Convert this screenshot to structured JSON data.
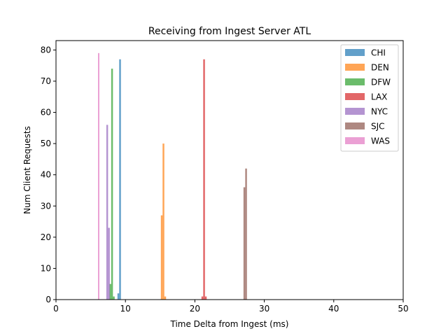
{
  "chart_data": {
    "type": "histogram",
    "title": "Receiving from Ingest Server ATL",
    "xlabel": "Time Delta from Ingest (ms)",
    "ylabel": "Num Client Requests",
    "xlim": [
      0,
      50
    ],
    "ylim": [
      0,
      83
    ],
    "xticks": [
      0,
      10,
      20,
      30,
      40,
      50
    ],
    "yticks": [
      0,
      10,
      20,
      30,
      40,
      50,
      60,
      70,
      80
    ],
    "grid": false,
    "legend_position": "top-right",
    "series": [
      {
        "name": "CHI",
        "color": "#1f77b4",
        "bins": [
          {
            "x0": 8.85,
            "x1": 9.1,
            "count": 2
          },
          {
            "x0": 9.1,
            "x1": 9.35,
            "count": 77
          }
        ]
      },
      {
        "name": "DEN",
        "color": "#ff7f0e",
        "bins": [
          {
            "x0": 15.1,
            "x1": 15.35,
            "count": 27
          },
          {
            "x0": 15.35,
            "x1": 15.6,
            "count": 50
          },
          {
            "x0": 15.6,
            "x1": 15.85,
            "count": 1
          }
        ]
      },
      {
        "name": "DFW",
        "color": "#2ca02c",
        "bins": [
          {
            "x0": 7.7,
            "x1": 7.95,
            "count": 5
          },
          {
            "x0": 7.95,
            "x1": 8.2,
            "count": 74
          },
          {
            "x0": 8.2,
            "x1": 8.45,
            "count": 1
          }
        ]
      },
      {
        "name": "LAX",
        "color": "#d62728",
        "bins": [
          {
            "x0": 20.95,
            "x1": 21.2,
            "count": 1
          },
          {
            "x0": 21.2,
            "x1": 21.45,
            "count": 77
          },
          {
            "x0": 21.45,
            "x1": 21.7,
            "count": 1
          }
        ]
      },
      {
        "name": "NYC",
        "color": "#9467bd",
        "bins": [
          {
            "x0": 7.25,
            "x1": 7.5,
            "count": 56
          },
          {
            "x0": 7.5,
            "x1": 7.75,
            "count": 23
          }
        ]
      },
      {
        "name": "SJC",
        "color": "#8c564b",
        "bins": [
          {
            "x0": 27.0,
            "x1": 27.25,
            "count": 36
          },
          {
            "x0": 27.25,
            "x1": 27.5,
            "count": 42
          }
        ]
      },
      {
        "name": "WAS",
        "color": "#e377c2",
        "bins": [
          {
            "x0": 6.05,
            "x1": 6.25,
            "count": 79
          }
        ]
      }
    ]
  }
}
